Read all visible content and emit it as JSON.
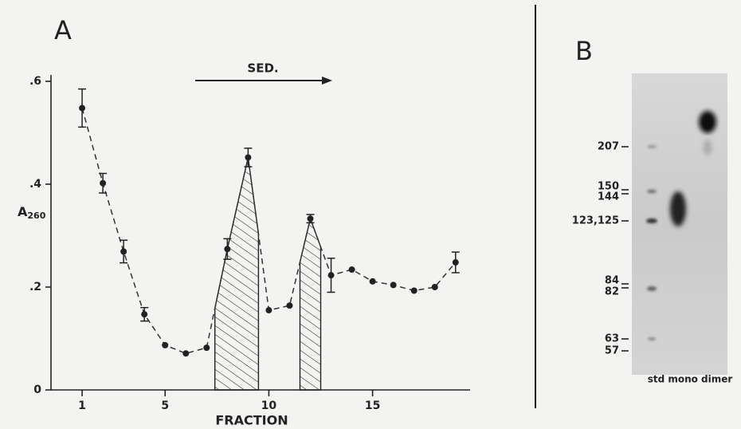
{
  "chart_data": {
    "type": "line",
    "title": "A",
    "annotation": "SED.",
    "y_label": "A",
    "y_label_subscript": "260",
    "x_label": "FRACTION",
    "x": [
      1,
      2,
      3,
      4,
      5,
      6,
      7,
      8,
      9,
      10,
      11,
      12,
      13,
      14,
      15,
      16,
      17,
      18,
      19
    ],
    "series": [
      {
        "name": null,
        "color": "#333",
        "values": [
          0.548,
          0.402,
          0.269,
          0.147,
          0.087,
          0.071,
          0.082,
          0.274,
          0.452,
          0.155,
          0.164,
          0.333,
          0.223,
          0.234,
          0.211,
          0.204,
          0.193,
          0.2,
          0.248
        ],
        "errors": [
          0.037,
          0.019,
          0.022,
          0.013,
          null,
          null,
          null,
          0.02,
          0.018,
          null,
          null,
          0.008,
          0.033,
          null,
          null,
          null,
          null,
          null,
          0.02
        ]
      }
    ],
    "shaded": [
      [
        7.4,
        9.5
      ],
      [
        11.5,
        12.5
      ]
    ],
    "xlim": [
      -0.5,
      19.7
    ],
    "ylim": [
      0,
      0.6
    ],
    "xticks": [
      1,
      5,
      10,
      15
    ],
    "yticks": [
      0,
      {
        "value": 0.2,
        "label": ".2"
      },
      {
        "value": 0.4,
        "label": ".4"
      },
      {
        "value": 0.6,
        "label": ".6"
      }
    ],
    "grid": false
  },
  "gel": {
    "title": "B",
    "markers": [
      "207",
      "150",
      "144",
      "123,125",
      "84",
      "82",
      "63",
      "57"
    ],
    "lanes": "std mono dimer"
  }
}
